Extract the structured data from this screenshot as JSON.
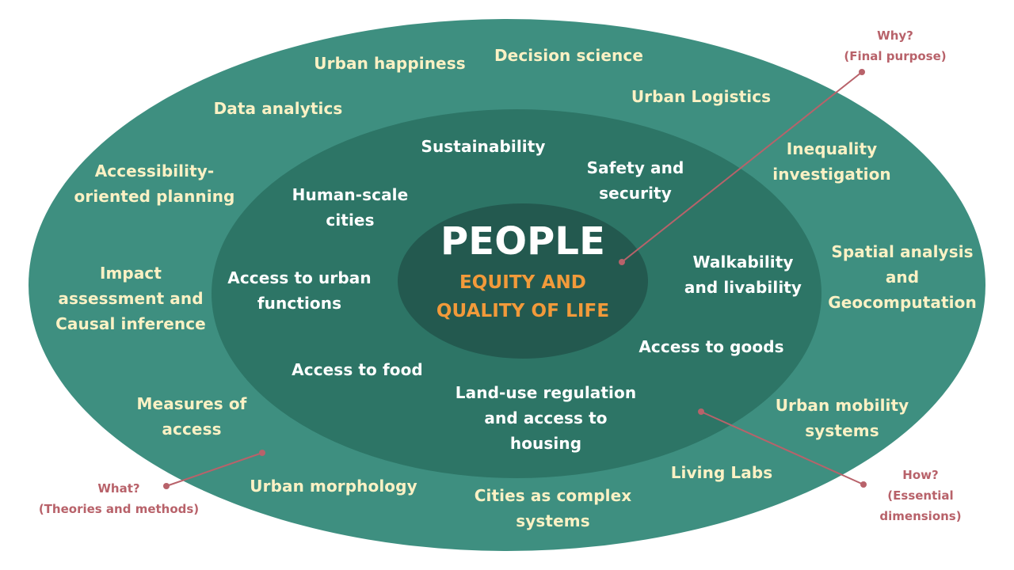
{
  "colors": {
    "outer": "#3e8f80",
    "middle": "#2d7566",
    "inner": "#23594f",
    "outer_text": "#fbf1c4",
    "middle_text": "#ffffff",
    "orange": "#f29a3a",
    "callout": "#b8626a"
  },
  "center": {
    "title": "PEOPLE",
    "subtitle": "EQUITY AND\nQUALITY OF LIFE"
  },
  "outer_ring": {
    "urban_happiness": "Urban happiness",
    "decision_science": "Decision science",
    "data_analytics": "Data analytics",
    "urban_logistics": "Urban Logistics",
    "accessibility_planning": "Accessibility-\noriented planning",
    "inequality_investigation": "Inequality\ninvestigation",
    "impact_assessment": "Impact\nassessment and\nCausal inference",
    "spatial_analysis": "Spatial analysis\nand\nGeocomputation",
    "measures_of_access": "Measures of\naccess",
    "urban_mobility": "Urban mobility\nsystems",
    "urban_morphology": "Urban morphology",
    "cities_complex": "Cities as complex\nsystems",
    "living_labs": "Living Labs"
  },
  "middle_ring": {
    "sustainability": "Sustainability",
    "safety_security": "Safety and\nsecurity",
    "human_scale": "Human-scale\ncities",
    "walkability": "Walkability\nand livability",
    "access_urban_functions": "Access to urban\nfunctions",
    "access_goods": "Access to goods",
    "access_food": "Access to food",
    "land_use": "Land-use regulation\nand access to\nhousing"
  },
  "callouts": {
    "why": "Why?\n(Final purpose)",
    "what": "What?\n(Theories and methods)",
    "how": "How?\n(Essential dimensions)"
  }
}
